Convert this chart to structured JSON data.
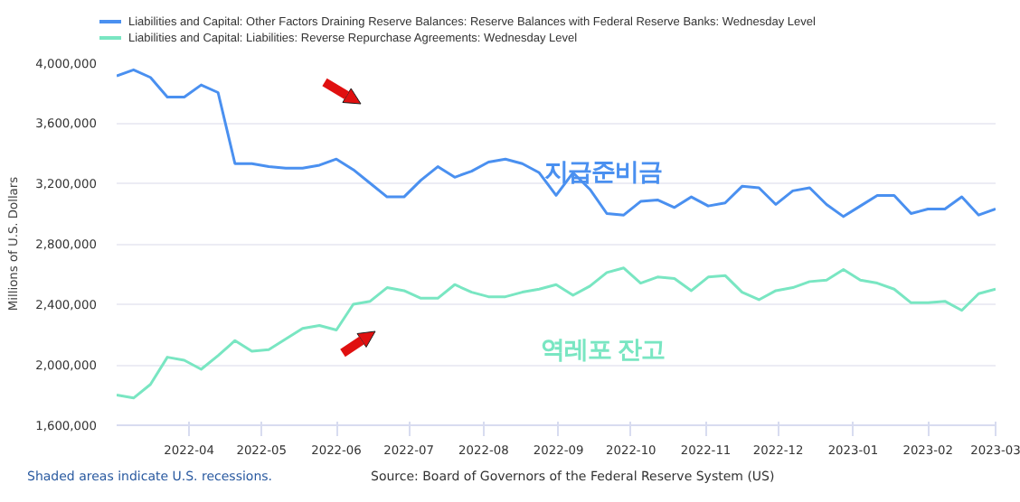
{
  "chart_data": {
    "type": "line",
    "ylabel": "Millions of U.S. Dollars",
    "x": [
      "2022-03-02",
      "2022-03-09",
      "2022-03-16",
      "2022-03-23",
      "2022-03-30",
      "2022-04-06",
      "2022-04-13",
      "2022-04-20",
      "2022-04-27",
      "2022-05-04",
      "2022-05-11",
      "2022-05-18",
      "2022-05-25",
      "2022-06-01",
      "2022-06-08",
      "2022-06-15",
      "2022-06-22",
      "2022-06-29",
      "2022-07-06",
      "2022-07-13",
      "2022-07-20",
      "2022-07-27",
      "2022-08-03",
      "2022-08-10",
      "2022-08-17",
      "2022-08-24",
      "2022-08-31",
      "2022-09-07",
      "2022-09-14",
      "2022-09-21",
      "2022-09-28",
      "2022-10-05",
      "2022-10-12",
      "2022-10-19",
      "2022-10-26",
      "2022-11-02",
      "2022-11-09",
      "2022-11-16",
      "2022-11-23",
      "2022-11-30",
      "2022-12-07",
      "2022-12-14",
      "2022-12-21",
      "2022-12-28",
      "2023-01-04",
      "2023-01-11",
      "2023-01-18",
      "2023-01-25",
      "2023-02-01",
      "2023-02-08",
      "2023-02-15",
      "2023-02-22",
      "2023-03-01"
    ],
    "series": [
      {
        "name": "Liabilities and Capital: Other Factors Draining Reserve Balances: Reserve Balances with Federal Reserve Banks: Wednesday Level",
        "color": "#4a90f0",
        "values": [
          3910000,
          3950000,
          3900000,
          3770000,
          3770000,
          3850000,
          3800000,
          3330000,
          3330000,
          3310000,
          3300000,
          3300000,
          3320000,
          3360000,
          3290000,
          3200000,
          3110000,
          3110000,
          3220000,
          3310000,
          3240000,
          3280000,
          3340000,
          3360000,
          3330000,
          3270000,
          3120000,
          3270000,
          3160000,
          3000000,
          2990000,
          3080000,
          3090000,
          3040000,
          3110000,
          3050000,
          3070000,
          3180000,
          3170000,
          3060000,
          3150000,
          3170000,
          3060000,
          2980000,
          3050000,
          3120000,
          3120000,
          3000000,
          3030000,
          3030000,
          3110000,
          2990000,
          3030000
        ]
      },
      {
        "name": "Liabilities and Capital: Liabilities: Reverse Repurchase Agreements: Wednesday Level",
        "color": "#79e6c2",
        "values": [
          1800000,
          1780000,
          1870000,
          2050000,
          2030000,
          1970000,
          2060000,
          2160000,
          2090000,
          2100000,
          2170000,
          2240000,
          2260000,
          2230000,
          2400000,
          2420000,
          2510000,
          2490000,
          2440000,
          2440000,
          2530000,
          2480000,
          2450000,
          2450000,
          2480000,
          2500000,
          2530000,
          2460000,
          2520000,
          2610000,
          2640000,
          2540000,
          2580000,
          2570000,
          2490000,
          2580000,
          2590000,
          2480000,
          2430000,
          2490000,
          2510000,
          2550000,
          2560000,
          2630000,
          2560000,
          2540000,
          2500000,
          2410000,
          2410000,
          2420000,
          2360000,
          2470000,
          2500000
        ]
      }
    ],
    "xlim": [
      "2022-03-02",
      "2023-03-01"
    ],
    "xticks": [
      "2022-04",
      "2022-05",
      "2022-06",
      "2022-07",
      "2022-08",
      "2022-09",
      "2022-10",
      "2022-11",
      "2022-12",
      "2023-01",
      "2023-02",
      "2023-03"
    ],
    "ylim": [
      1600000,
      4000000
    ],
    "yticks": [
      {
        "value": 1600000,
        "label": "1,600,000"
      },
      {
        "value": 2000000,
        "label": "2,000,000"
      },
      {
        "value": 2400000,
        "label": "2,400,000"
      },
      {
        "value": 2800000,
        "label": "2,800,000"
      },
      {
        "value": 3200000,
        "label": "3,200,000"
      },
      {
        "value": 3600000,
        "label": "3,600,000"
      },
      {
        "value": 4000000,
        "label": "4,000,000"
      }
    ],
    "grid": "y",
    "legend": "top",
    "marker": "none",
    "line_style": "solid",
    "annotations": [
      "지급준비금",
      "역레포 잔고",
      "Shaded areas indicate U.S. recessions.",
      "Source: Board of Governors of the Federal Reserve System (US)"
    ]
  }
}
